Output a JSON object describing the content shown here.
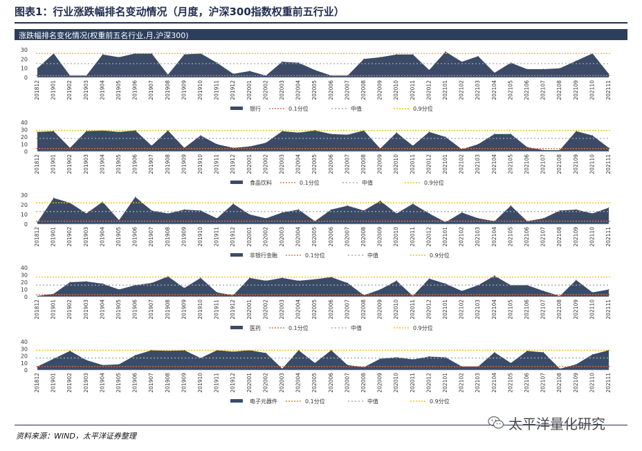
{
  "title": "图表1：行业涨跌幅排名变动情况（月度，沪深300指数权重前五行业）",
  "panel_header": "涨跌幅排名变化情况(权重前五名行业,月,沪深300)",
  "source": "资料来源：WIND，太平洋证券整理",
  "watermark": "太平洋量化研究",
  "colors": {
    "area": "#3b4b67",
    "q10": "#e8733a",
    "median": "#a6a6a6",
    "q90": "#f2c200",
    "header_bg": "#2b3e5c",
    "title": "#1f2d4e"
  },
  "chart_data": [
    {
      "type": "area",
      "categories": [
        "201812",
        "201901",
        "201902",
        "201903",
        "201904",
        "201905",
        "201906",
        "201907",
        "201908",
        "201909",
        "201910",
        "201911",
        "201912",
        "202001",
        "202002",
        "202003",
        "202004",
        "202005",
        "202006",
        "202007",
        "202008",
        "202009",
        "202010",
        "202011",
        "202012",
        "202101",
        "202102",
        "202103",
        "202104",
        "202105",
        "202106",
        "202107",
        "202108",
        "202109",
        "202110",
        "202111"
      ],
      "ylim": [
        0,
        30
      ],
      "yticks": [
        "0",
        "10",
        "20",
        "30"
      ],
      "series": [
        {
          "name": "银行",
          "values": [
            10,
            26,
            2,
            2,
            25,
            22,
            26,
            26,
            3,
            25,
            26,
            16,
            4,
            7,
            2,
            17,
            16,
            8,
            2,
            2,
            20,
            22,
            25,
            25,
            8,
            28,
            17,
            23,
            5,
            16,
            9,
            9,
            10,
            18,
            26,
            4
          ]
        }
      ],
      "reference_lines": [
        {
          "name": "0.1分位",
          "value": 2
        },
        {
          "name": "中值",
          "value": 15
        },
        {
          "name": "0.9分位",
          "value": 26
        }
      ]
    },
    {
      "type": "area",
      "categories": [
        "201812",
        "201901",
        "201902",
        "201903",
        "201904",
        "201905",
        "201906",
        "201907",
        "201908",
        "201909",
        "201910",
        "201911",
        "201912",
        "202001",
        "202002",
        "202003",
        "202004",
        "202005",
        "202006",
        "202007",
        "202008",
        "202009",
        "202010",
        "202011",
        "202012",
        "202101",
        "202102",
        "202103",
        "202104",
        "202105",
        "202106",
        "202107",
        "202108",
        "202109",
        "202110",
        "202111"
      ],
      "ylim": [
        0,
        40
      ],
      "yticks": [
        "0",
        "10",
        "20",
        "30",
        "40"
      ],
      "series": [
        {
          "name": "食品饮料",
          "values": [
            27,
            28,
            5,
            28,
            29,
            27,
            29,
            8,
            29,
            5,
            22,
            10,
            5,
            7,
            12,
            28,
            26,
            29,
            24,
            23,
            29,
            4,
            26,
            8,
            27,
            20,
            3,
            10,
            24,
            24,
            6,
            2,
            2,
            28,
            22,
            5
          ]
        }
      ],
      "reference_lines": [
        {
          "name": "0.1分位",
          "value": 4
        },
        {
          "name": "中值",
          "value": 18
        },
        {
          "name": "0.9分位",
          "value": 29
        }
      ]
    },
    {
      "type": "area",
      "categories": [
        "201812",
        "201901",
        "201902",
        "201903",
        "201904",
        "201905",
        "201906",
        "201907",
        "201908",
        "201909",
        "201910",
        "201911",
        "201912",
        "202001",
        "202002",
        "202003",
        "202004",
        "202005",
        "202006",
        "202007",
        "202008",
        "202009",
        "202010",
        "202011",
        "202012",
        "202101",
        "202102",
        "202103",
        "202104",
        "202105",
        "202106",
        "202107",
        "202108",
        "202109",
        "202110",
        "202111"
      ],
      "ylim": [
        0,
        30
      ],
      "yticks": [
        "0",
        "10",
        "20",
        "30"
      ],
      "series": [
        {
          "name": "非银行金融",
          "values": [
            2,
            27,
            22,
            11,
            23,
            4,
            28,
            14,
            11,
            15,
            14,
            6,
            21,
            10,
            6,
            12,
            15,
            3,
            15,
            19,
            14,
            24,
            11,
            21,
            11,
            2,
            12,
            6,
            3,
            19,
            3,
            6,
            14,
            15,
            11,
            17
          ]
        }
      ],
      "reference_lines": [
        {
          "name": "0.1分位",
          "value": 3
        },
        {
          "name": "中值",
          "value": 13
        },
        {
          "name": "0.9分位",
          "value": 22
        }
      ]
    },
    {
      "type": "area",
      "categories": [
        "201812",
        "201901",
        "201902",
        "201903",
        "201904",
        "201905",
        "201906",
        "201907",
        "201908",
        "201909",
        "201910",
        "201911",
        "201912",
        "202001",
        "202002",
        "202003",
        "202004",
        "202005",
        "202006",
        "202007",
        "202008",
        "202009",
        "202010",
        "202011",
        "202012",
        "202101",
        "202102",
        "202103",
        "202104",
        "202105",
        "202106",
        "202107",
        "202108",
        "202109",
        "202110",
        "202111"
      ],
      "ylim": [
        0,
        40
      ],
      "yticks": [
        "0",
        "10",
        "20",
        "30",
        "40"
      ],
      "series": [
        {
          "name": "医药",
          "values": [
            1,
            4,
            20,
            21,
            18,
            10,
            16,
            19,
            28,
            12,
            26,
            6,
            2,
            26,
            22,
            26,
            22,
            24,
            27,
            19,
            2,
            10,
            22,
            1,
            25,
            18,
            8,
            16,
            29,
            16,
            16,
            8,
            1,
            23,
            6,
            10
          ]
        }
      ],
      "reference_lines": [
        {
          "name": "0.1分位",
          "value": 3
        },
        {
          "name": "中值",
          "value": 16
        },
        {
          "name": "0.9分位",
          "value": 27
        }
      ]
    },
    {
      "type": "area",
      "categories": [
        "201812",
        "201901",
        "201902",
        "201903",
        "201904",
        "201905",
        "201906",
        "201907",
        "201908",
        "201909",
        "201910",
        "201911",
        "201912",
        "202001",
        "202002",
        "202003",
        "202004",
        "202005",
        "202006",
        "202007",
        "202008",
        "202009",
        "202010",
        "202011",
        "202012",
        "202101",
        "202102",
        "202103",
        "202104",
        "202105",
        "202106",
        "202107",
        "202108",
        "202109",
        "202110",
        "202111"
      ],
      "ylim": [
        0,
        40
      ],
      "yticks": [
        "0",
        "10",
        "20",
        "30",
        "40"
      ],
      "series": [
        {
          "name": "电子元器件",
          "values": [
            5,
            16,
            27,
            14,
            7,
            8,
            21,
            28,
            27,
            28,
            17,
            28,
            26,
            28,
            24,
            2,
            28,
            10,
            28,
            7,
            4,
            16,
            18,
            15,
            19,
            18,
            5,
            5,
            25,
            10,
            27,
            25,
            2,
            8,
            22,
            28
          ]
        }
      ],
      "reference_lines": [
        {
          "name": "0.1分位",
          "value": 5
        },
        {
          "name": "中值",
          "value": 17
        },
        {
          "name": "0.9分位",
          "value": 28
        }
      ]
    }
  ]
}
